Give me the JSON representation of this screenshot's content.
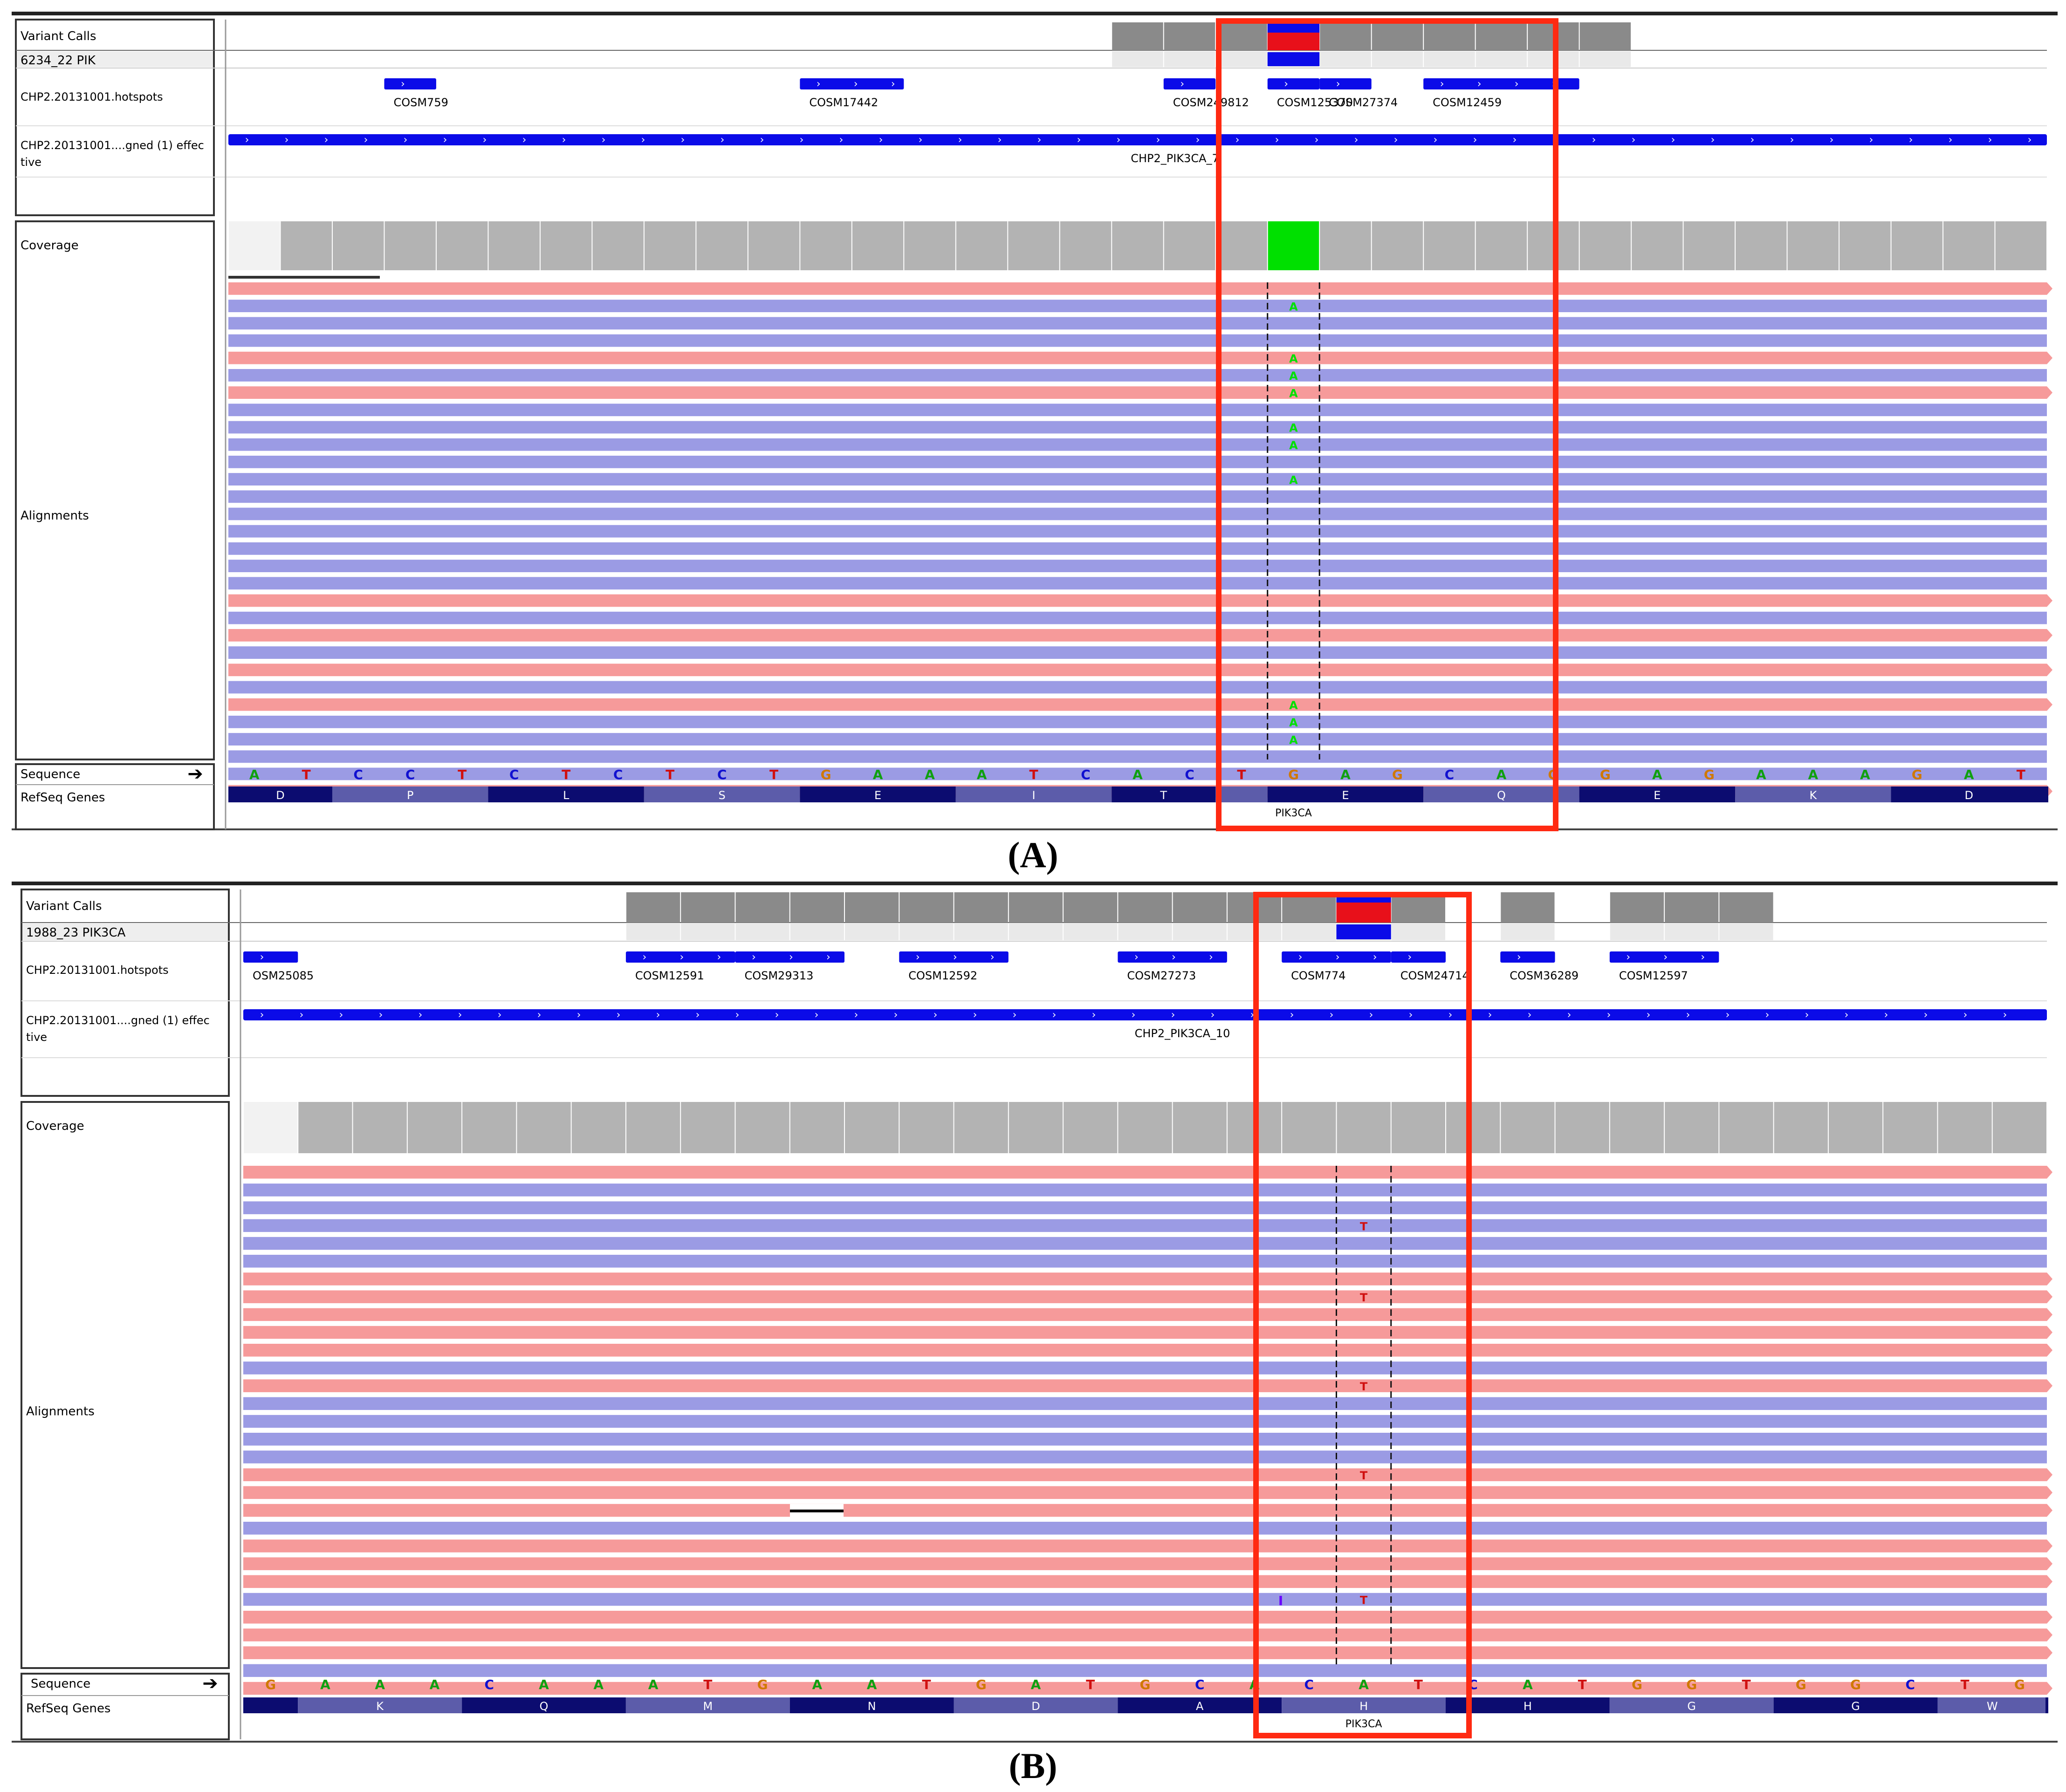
{
  "colors": {
    "read_pos": "#f69a9a",
    "read_neg": "#9b9be4",
    "blue": "#0b0be8",
    "red": "#e8101a",
    "gray": "#8a8a8a",
    "lightgray": "#e9e9e9",
    "coverage": "#b3b3b3",
    "green": "#00e000",
    "box": "#ff2a12",
    "navy": "#0c0c70",
    "slate": "#5c5caa",
    "A": "#10a010",
    "C": "#1010d0",
    "G": "#d07800",
    "T": "#d01010"
  },
  "panels": [
    {
      "caption": "(A)",
      "track_labels": {
        "variant_calls": "Variant Calls",
        "sample": "6234_22 PIK",
        "hotspots": "CHP2.20131001.hotspots",
        "designed": "CHP2.20131001....gned (1) effec tive",
        "coverage": "Coverage",
        "alignments": "Alignments",
        "sequence": "Sequence",
        "refseq": "RefSeq Genes"
      },
      "coverage_range": "[0 - 10]",
      "num_bases": 35,
      "sequence": "ATCCTCTCTCTGAAATCACTGAGCAGGAGAAAGAT",
      "variant_base_index": 20,
      "variant_site_cells": [
        17,
        18,
        19,
        20,
        21,
        22,
        23,
        24,
        25,
        26
      ],
      "hotspots": [
        {
          "label": "COSM759",
          "start": 3,
          "end": 4
        },
        {
          "label": "COSM17442",
          "start": 11,
          "end": 13
        },
        {
          "label": "COSM249812",
          "start": 18,
          "end": 19
        },
        {
          "label": "COSM125370",
          "start": 20,
          "end": 21
        },
        {
          "label": "COSM27374",
          "start": 21,
          "end": 22
        },
        {
          "label": "COSM12459",
          "start": 23,
          "end": 26
        }
      ],
      "amplicon_label": "CHP2_PIK3CA_7",
      "codons": [
        {
          "aa": "D",
          "start": 0,
          "end": 2
        },
        {
          "aa": "P",
          "start": 2,
          "end": 5
        },
        {
          "aa": "L",
          "start": 5,
          "end": 8
        },
        {
          "aa": "S",
          "start": 8,
          "end": 11
        },
        {
          "aa": "E",
          "start": 11,
          "end": 14
        },
        {
          "aa": "I",
          "start": 14,
          "end": 17
        },
        {
          "aa": "T",
          "start": 17,
          "end": 19
        },
        {
          "aa": "",
          "start": 19,
          "end": 20
        },
        {
          "aa": "E",
          "start": 20,
          "end": 23
        },
        {
          "aa": "Q",
          "start": 23,
          "end": 26
        },
        {
          "aa": "E",
          "start": 26,
          "end": 29
        },
        {
          "aa": "K",
          "start": 29,
          "end": 32
        },
        {
          "aa": "D",
          "start": 32,
          "end": 35
        }
      ],
      "gene_label": "PIK3CA",
      "reads": [
        "pos",
        "neg",
        "neg",
        "neg",
        "pos",
        "neg",
        "pos",
        "neg",
        "neg",
        "neg",
        "neg",
        "neg",
        "neg",
        "neg",
        "neg",
        "neg",
        "neg",
        "neg",
        "pos",
        "neg",
        "pos",
        "neg",
        "pos",
        "neg",
        "pos",
        "neg",
        "neg",
        "neg",
        "neg",
        "pos"
      ],
      "mismatches": [
        {
          "row": 1,
          "base": "A"
        },
        {
          "row": 4,
          "base": "A"
        },
        {
          "row": 5,
          "base": "A"
        },
        {
          "row": 6,
          "base": "A"
        },
        {
          "row": 8,
          "base": "A"
        },
        {
          "row": 9,
          "base": "A"
        },
        {
          "row": 11,
          "base": "A"
        },
        {
          "row": 24,
          "base": "A"
        },
        {
          "row": 25,
          "base": "A"
        },
        {
          "row": 26,
          "base": "A"
        }
      ]
    },
    {
      "caption": "(B)",
      "track_labels": {
        "variant_calls": "Variant Calls",
        "sample": "1988_23 PIK3CA",
        "hotspots": "CHP2.20131001.hotspots",
        "designed": "CHP2.20131001....gned (1) effec tive",
        "coverage": "Coverage",
        "alignments": "Alignments",
        "sequence": "Sequence",
        "refseq": "RefSeq Genes"
      },
      "coverage_range": "[0 - 10]",
      "num_bases": 33,
      "sequence": "GAAACAAATGAATGATGCACATCATGGTGGCTG",
      "variant_base_index": 20,
      "variant_site_cells": [
        7,
        8,
        9,
        10,
        11,
        12,
        13,
        14,
        15,
        16,
        17,
        18,
        19,
        20,
        21,
        23,
        25,
        26,
        27
      ],
      "hotspots": [
        {
          "label": "OSM25085",
          "start": 0,
          "end": 1
        },
        {
          "label": "COSM12591",
          "start": 7,
          "end": 9
        },
        {
          "label": "COSM29313",
          "start": 9,
          "end": 11
        },
        {
          "label": "COSM12592",
          "start": 12,
          "end": 14
        },
        {
          "label": "COSM27273",
          "start": 16,
          "end": 18
        },
        {
          "label": "COSM774",
          "start": 19,
          "end": 21
        },
        {
          "label": "COSM24714",
          "start": 21,
          "end": 22
        },
        {
          "label": "COSM36289",
          "start": 23,
          "end": 24
        },
        {
          "label": "COSM12597",
          "start": 25,
          "end": 27
        }
      ],
      "amplicon_label": "CHP2_PIK3CA_10",
      "codons": [
        {
          "aa": "",
          "start": 0,
          "end": 1
        },
        {
          "aa": "K",
          "start": 1,
          "end": 4
        },
        {
          "aa": "Q",
          "start": 4,
          "end": 7
        },
        {
          "aa": "M",
          "start": 7,
          "end": 10
        },
        {
          "aa": "N",
          "start": 10,
          "end": 13
        },
        {
          "aa": "D",
          "start": 13,
          "end": 16
        },
        {
          "aa": "A",
          "start": 16,
          "end": 19
        },
        {
          "aa": "H",
          "start": 19,
          "end": 22
        },
        {
          "aa": "H",
          "start": 22,
          "end": 25
        },
        {
          "aa": "G",
          "start": 25,
          "end": 28
        },
        {
          "aa": "G",
          "start": 28,
          "end": 31
        },
        {
          "aa": "W",
          "start": 31,
          "end": 33
        }
      ],
      "gene_label": "PIK3CA",
      "reads": [
        "pos",
        "neg",
        "neg",
        "neg",
        "neg",
        "neg",
        "pos",
        "pos",
        "pos",
        "pos",
        "pos",
        "neg",
        "pos",
        "neg",
        "neg",
        "neg",
        "neg",
        "pos",
        "pos",
        "pos",
        "neg",
        "pos",
        "pos",
        "pos",
        "neg",
        "pos",
        "pos",
        "pos",
        "neg",
        "pos"
      ],
      "mismatches": [
        {
          "row": 3,
          "base": "T"
        },
        {
          "row": 7,
          "base": "T"
        },
        {
          "row": 12,
          "base": "T"
        },
        {
          "row": 17,
          "base": "T"
        },
        {
          "row": 24,
          "base": "T"
        }
      ]
    }
  ]
}
